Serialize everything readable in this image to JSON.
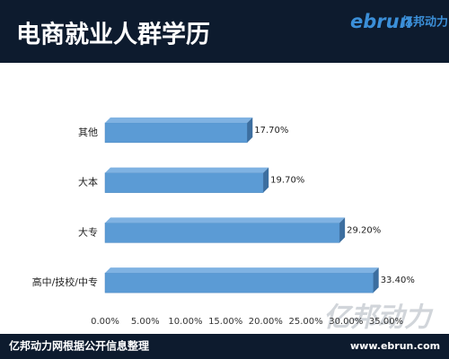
{
  "chart_data": {
    "type": "bar",
    "orientation": "horizontal",
    "title": "电商就业人群学历",
    "logo": "ebrun",
    "logo_cn": "亿邦动力",
    "source": "亿邦动力网根据公开信息整理",
    "url": "www.ebrun.com",
    "watermark": "亿邦动力",
    "categories": [
      "其他",
      "大本",
      "大专",
      "高中/技校/中专"
    ],
    "values": [
      17.7,
      19.7,
      29.2,
      33.4
    ],
    "value_labels": [
      "17.70%",
      "19.70%",
      "29.20%",
      "33.40%"
    ],
    "color": "#5b9bd5",
    "xlim": [
      0,
      35
    ],
    "xticks": [
      {
        "value": 0,
        "label": "0.00%"
      },
      {
        "value": 5,
        "label": "5.00%"
      },
      {
        "value": 10,
        "label": "10.00%"
      },
      {
        "value": 15,
        "label": "15.00%"
      },
      {
        "value": 20,
        "label": "20.00%"
      },
      {
        "value": 25,
        "label": "25.00%"
      },
      {
        "value": 30,
        "label": "30.00%"
      },
      {
        "value": 35,
        "label": "35.00%"
      }
    ],
    "grid": false
  }
}
